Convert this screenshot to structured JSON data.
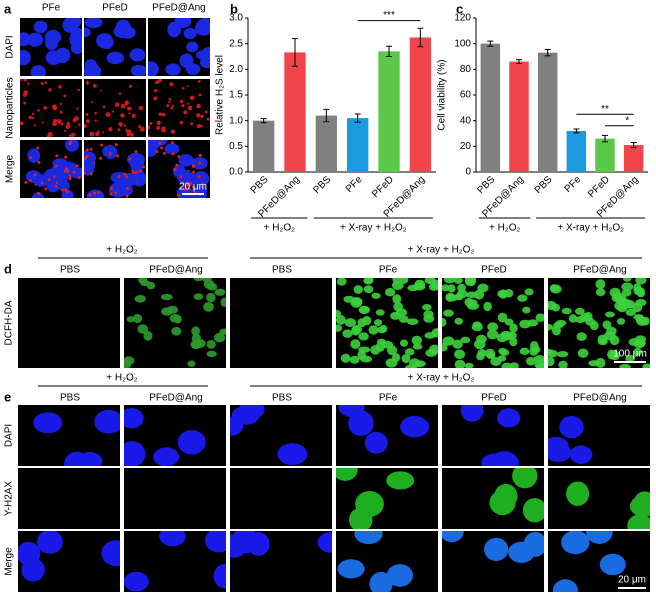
{
  "panel_labels": [
    "a",
    "b",
    "c",
    "d",
    "e"
  ],
  "panel_a": {
    "columns": [
      "PFe",
      "PFeD",
      "PFeD@Ang"
    ],
    "rows": [
      "DAPI",
      "Nanoparticles",
      "Merge"
    ],
    "scale_bar": "20 μm"
  },
  "chart_data": [
    {
      "type": "bar",
      "y_label": "Relative H₂S level",
      "categories": [
        "PBS",
        "PFeD@Ang",
        "PBS",
        "PFe",
        "PFeD",
        "PFeD@Ang"
      ],
      "values": [
        1.0,
        2.33,
        1.1,
        1.05,
        2.35,
        2.62
      ],
      "errors": [
        0.04,
        0.27,
        0.12,
        0.08,
        0.1,
        0.18
      ],
      "colors": [
        "#808080",
        "#f0464b",
        "#808080",
        "#1a9be0",
        "#5cc84a",
        "#f0464b"
      ],
      "ylim": [
        0,
        3
      ],
      "yticks": [
        {
          "value": 0,
          "label": "0.0"
        },
        0.5,
        {
          "value": 1,
          "label": "1.0"
        },
        1.5,
        {
          "value": 2,
          "label": "2.0"
        },
        2.5,
        {
          "value": 3,
          "label": "3.0"
        }
      ],
      "group_labels": [
        "+ H₂O₂",
        "+ X-ray + H₂O₂"
      ],
      "significance": [
        "***"
      ]
    },
    {
      "type": "bar",
      "y_label": "Cell viability (%)",
      "categories": [
        "PBS",
        "PFeD@Ang",
        "PBS",
        "PFe",
        "PFeD",
        "PFeD@Ang"
      ],
      "values": [
        100,
        86,
        93,
        32,
        26,
        21
      ],
      "errors": [
        2,
        1.5,
        2.5,
        1.5,
        2.5,
        2
      ],
      "colors": [
        "#808080",
        "#f0464b",
        "#808080",
        "#1a9be0",
        "#5cc84a",
        "#f0464b"
      ],
      "ylim": [
        0,
        120
      ],
      "yticks": [
        0,
        20,
        40,
        60,
        80,
        100,
        120
      ],
      "group_labels": [
        "+ H₂O₂",
        "+ X-ray + H₂O₂"
      ],
      "significance": [
        "**",
        "*"
      ]
    }
  ],
  "panel_d": {
    "group_labels": [
      "+ H₂O₂",
      "+ X-ray + H₂O₂"
    ],
    "columns": [
      "PBS",
      "PFeD@Ang",
      "PBS",
      "PFe",
      "PFeD",
      "PFeD@Ang"
    ],
    "row_label": "DCFH-DA",
    "scale_bar": "100 μm"
  },
  "panel_e": {
    "group_labels": [
      "+ H₂O₂",
      "+ X-ray + H₂O₂"
    ],
    "columns": [
      "PBS",
      "PFeD@Ang",
      "PBS",
      "PFe",
      "PFeD",
      "PFeD@Ang"
    ],
    "rows": [
      "DAPI",
      "Y-H2AX",
      "Merge"
    ],
    "scale_bar": "20 μm"
  }
}
